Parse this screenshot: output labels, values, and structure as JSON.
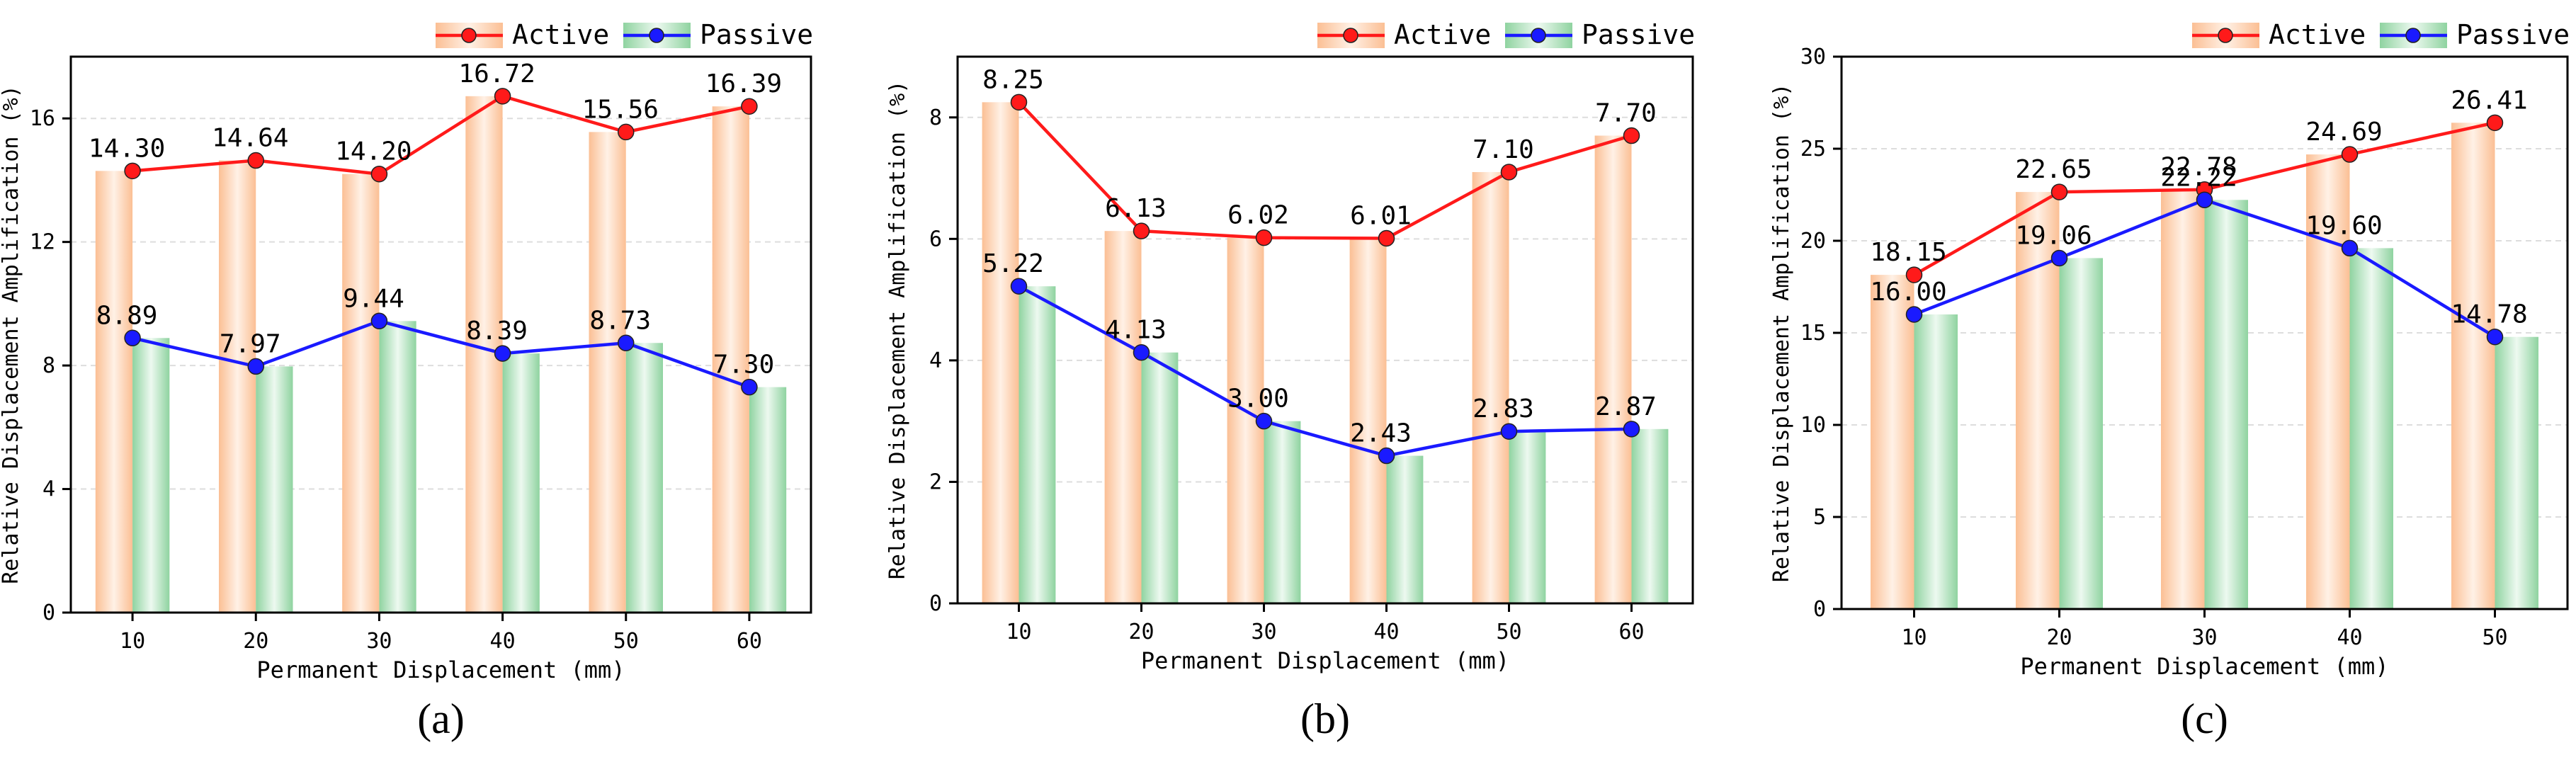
{
  "figure": {
    "colors": {
      "active": "#ff1a1a",
      "passive": "#1a1aff",
      "active_bar_edge": "#fbbf94",
      "active_bar_mid": "#fff1e6",
      "passive_bar_edge": "#8fd3a0",
      "passive_bar_mid": "#edf9f0",
      "axis": "#000000",
      "grid": "#dddddd"
    }
  },
  "chart_data": [
    {
      "type": "bar",
      "panel_label": "(a)",
      "categories": [
        "10",
        "20",
        "30",
        "40",
        "50",
        "60"
      ],
      "xlabel": "Permanent Displacement (mm)",
      "ylabel": "Relative Displacement Amplification (%)",
      "ylim": [
        0,
        18
      ],
      "yticks": [
        0,
        4,
        8,
        12,
        16
      ],
      "yticks_labels": [
        "0",
        "4",
        "8",
        "12",
        "16"
      ],
      "grid": true,
      "legend": "top-right",
      "series": [
        {
          "name": "Active",
          "kind": "bar+line",
          "values": [
            14.3,
            14.64,
            14.2,
            16.72,
            15.56,
            16.39
          ],
          "labels": [
            "14.30",
            "14.64",
            "14.20",
            "16.72",
            "15.56",
            "16.39"
          ]
        },
        {
          "name": "Passive",
          "kind": "bar+line",
          "values": [
            8.89,
            7.97,
            9.44,
            8.39,
            8.73,
            7.3
          ],
          "labels": [
            "8.89",
            "7.97",
            "9.44",
            "8.39",
            "8.73",
            "7.30"
          ]
        }
      ]
    },
    {
      "type": "bar",
      "panel_label": "(b)",
      "categories": [
        "10",
        "20",
        "30",
        "40",
        "50",
        "60"
      ],
      "xlabel": "Permanent Displacement (mm)",
      "ylabel": "Relative Displacement Amplification (%)",
      "ylim": [
        0,
        9
      ],
      "yticks": [
        0,
        2,
        4,
        6,
        8
      ],
      "yticks_labels": [
        "0",
        "2",
        "4",
        "6",
        "8"
      ],
      "grid": true,
      "legend": "top-right",
      "series": [
        {
          "name": "Active",
          "kind": "bar+line",
          "values": [
            8.25,
            6.13,
            6.02,
            6.01,
            7.1,
            7.7
          ],
          "labels": [
            "8.25",
            "6.13",
            "6.02",
            "6.01",
            "7.10",
            "7.70"
          ]
        },
        {
          "name": "Passive",
          "kind": "bar+line",
          "values": [
            5.22,
            4.13,
            3.0,
            2.43,
            2.83,
            2.87
          ],
          "labels": [
            "5.22",
            "4.13",
            "3.00",
            "2.43",
            "2.83",
            "2.87"
          ]
        }
      ]
    },
    {
      "type": "bar",
      "panel_label": "(c)",
      "categories": [
        "10",
        "20",
        "30",
        "40",
        "50"
      ],
      "xlabel": "Permanent Displacement (mm)",
      "ylabel": "Relative Displacement Amplification (%)",
      "ylim": [
        0,
        30
      ],
      "yticks": [
        0,
        5,
        10,
        15,
        20,
        25,
        30
      ],
      "yticks_labels": [
        "0",
        "5",
        "10",
        "15",
        "20",
        "25",
        "30"
      ],
      "grid": true,
      "legend": "top-right",
      "series": [
        {
          "name": "Active",
          "kind": "bar+line",
          "values": [
            18.15,
            22.65,
            22.78,
            24.69,
            26.41
          ],
          "labels": [
            "18.15",
            "22.65",
            "22.78",
            "24.69",
            "26.41"
          ]
        },
        {
          "name": "Passive",
          "kind": "bar+line",
          "values": [
            16.0,
            19.06,
            22.22,
            19.6,
            14.78
          ],
          "labels": [
            "16.00",
            "19.06",
            "22.22",
            "19.60",
            "14.78"
          ]
        }
      ]
    }
  ]
}
